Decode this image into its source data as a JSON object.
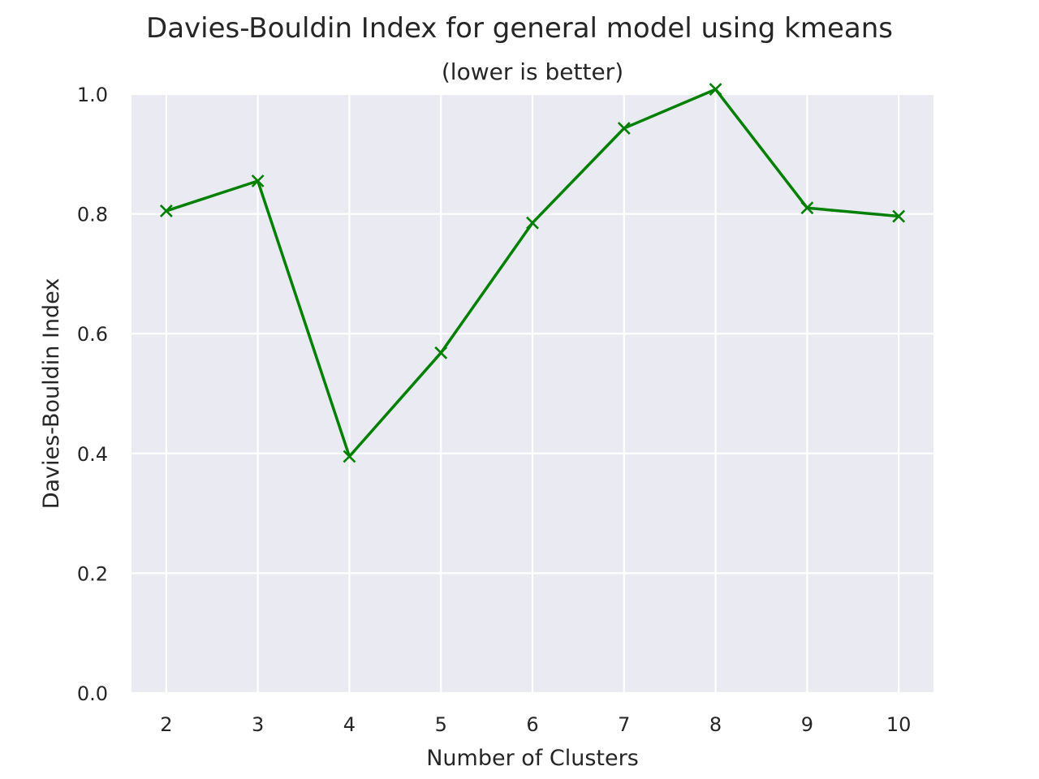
{
  "chart_data": {
    "type": "line",
    "title": "Davies-Bouldin Index for general model using kmeans",
    "subtitle": "(lower is better)",
    "xlabel": "Number of Clusters",
    "ylabel": "Davies-Bouldin Index",
    "x": [
      2,
      3,
      4,
      5,
      6,
      7,
      8,
      9,
      10
    ],
    "series": [
      {
        "values": [
          0.805,
          0.855,
          0.395,
          0.568,
          0.785,
          0.943,
          1.008,
          0.81,
          0.796
        ],
        "color": "#008000",
        "marker": "x"
      }
    ],
    "ylim": [
      0.0,
      1.0
    ],
    "xlim": [
      1.62,
      10.38
    ],
    "yticks": [
      "0.0",
      "0.2",
      "0.4",
      "0.6",
      "0.8",
      "1.0"
    ],
    "xticks": [
      "2",
      "3",
      "4",
      "5",
      "6",
      "7",
      "8",
      "9",
      "10"
    ],
    "grid": true,
    "plot_background": "#eaeaf2",
    "grid_color": "#ffffff",
    "text_color": "#262626"
  }
}
